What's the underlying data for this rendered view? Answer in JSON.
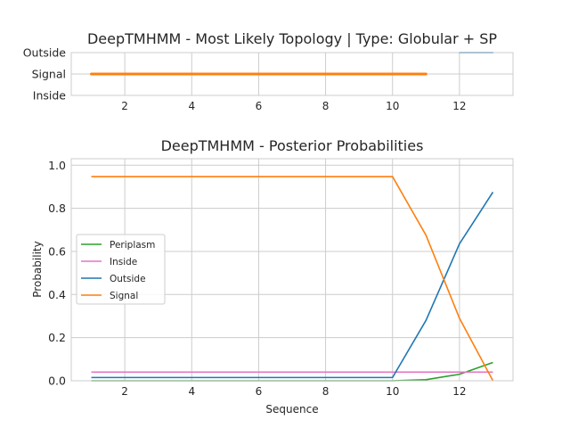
{
  "chart_data": [
    {
      "type": "line",
      "title": "DeepTMHMM - Most Likely Topology | Type: Globular + SP",
      "xlabel": "",
      "ylabel": "",
      "xlim": [
        0.4,
        13.6
      ],
      "x_ticks": [
        "2",
        "4",
        "6",
        "8",
        "10",
        "12"
      ],
      "y_categories": [
        "Inside",
        "Signal",
        "Outside"
      ],
      "grid": true,
      "legend": "none",
      "segments": [
        {
          "label": "Signal",
          "x_start": 1,
          "x_end": 11,
          "color": "#ff7f0e"
        },
        {
          "label": "Outside",
          "x_start": 12,
          "x_end": 13,
          "color": "#1f77b4"
        }
      ]
    },
    {
      "type": "line",
      "title": "DeepTMHMM - Posterior Probabilities",
      "xlabel": "Sequence",
      "ylabel": "Probability",
      "xlim": [
        0.4,
        13.6
      ],
      "ylim": [
        0,
        1.03
      ],
      "x_ticks": [
        "2",
        "4",
        "6",
        "8",
        "10",
        "12"
      ],
      "y_ticks": [
        "0.0",
        "0.2",
        "0.4",
        "0.6",
        "0.8",
        "1.0"
      ],
      "grid": true,
      "legend": "center-left",
      "x": [
        1,
        2,
        3,
        4,
        5,
        6,
        7,
        8,
        9,
        10,
        11,
        12,
        13
      ],
      "series": [
        {
          "name": "Periplasm",
          "color": "#2ca02c",
          "values": [
            0.0,
            0.0,
            0.0,
            0.0,
            0.0,
            0.0,
            0.0,
            0.0,
            0.0,
            0.0,
            0.005,
            0.03,
            0.085
          ]
        },
        {
          "name": "Inside",
          "color": "#e377c2",
          "values": [
            0.04,
            0.04,
            0.04,
            0.04,
            0.04,
            0.04,
            0.04,
            0.04,
            0.04,
            0.04,
            0.04,
            0.04,
            0.04
          ]
        },
        {
          "name": "Outside",
          "color": "#1f77b4",
          "values": [
            0.015,
            0.015,
            0.015,
            0.015,
            0.015,
            0.015,
            0.015,
            0.015,
            0.015,
            0.015,
            0.28,
            0.635,
            0.875
          ]
        },
        {
          "name": "Signal",
          "color": "#ff7f0e",
          "values": [
            0.947,
            0.947,
            0.947,
            0.947,
            0.947,
            0.947,
            0.947,
            0.947,
            0.947,
            0.947,
            0.675,
            0.29,
            0.0
          ]
        }
      ]
    }
  ]
}
